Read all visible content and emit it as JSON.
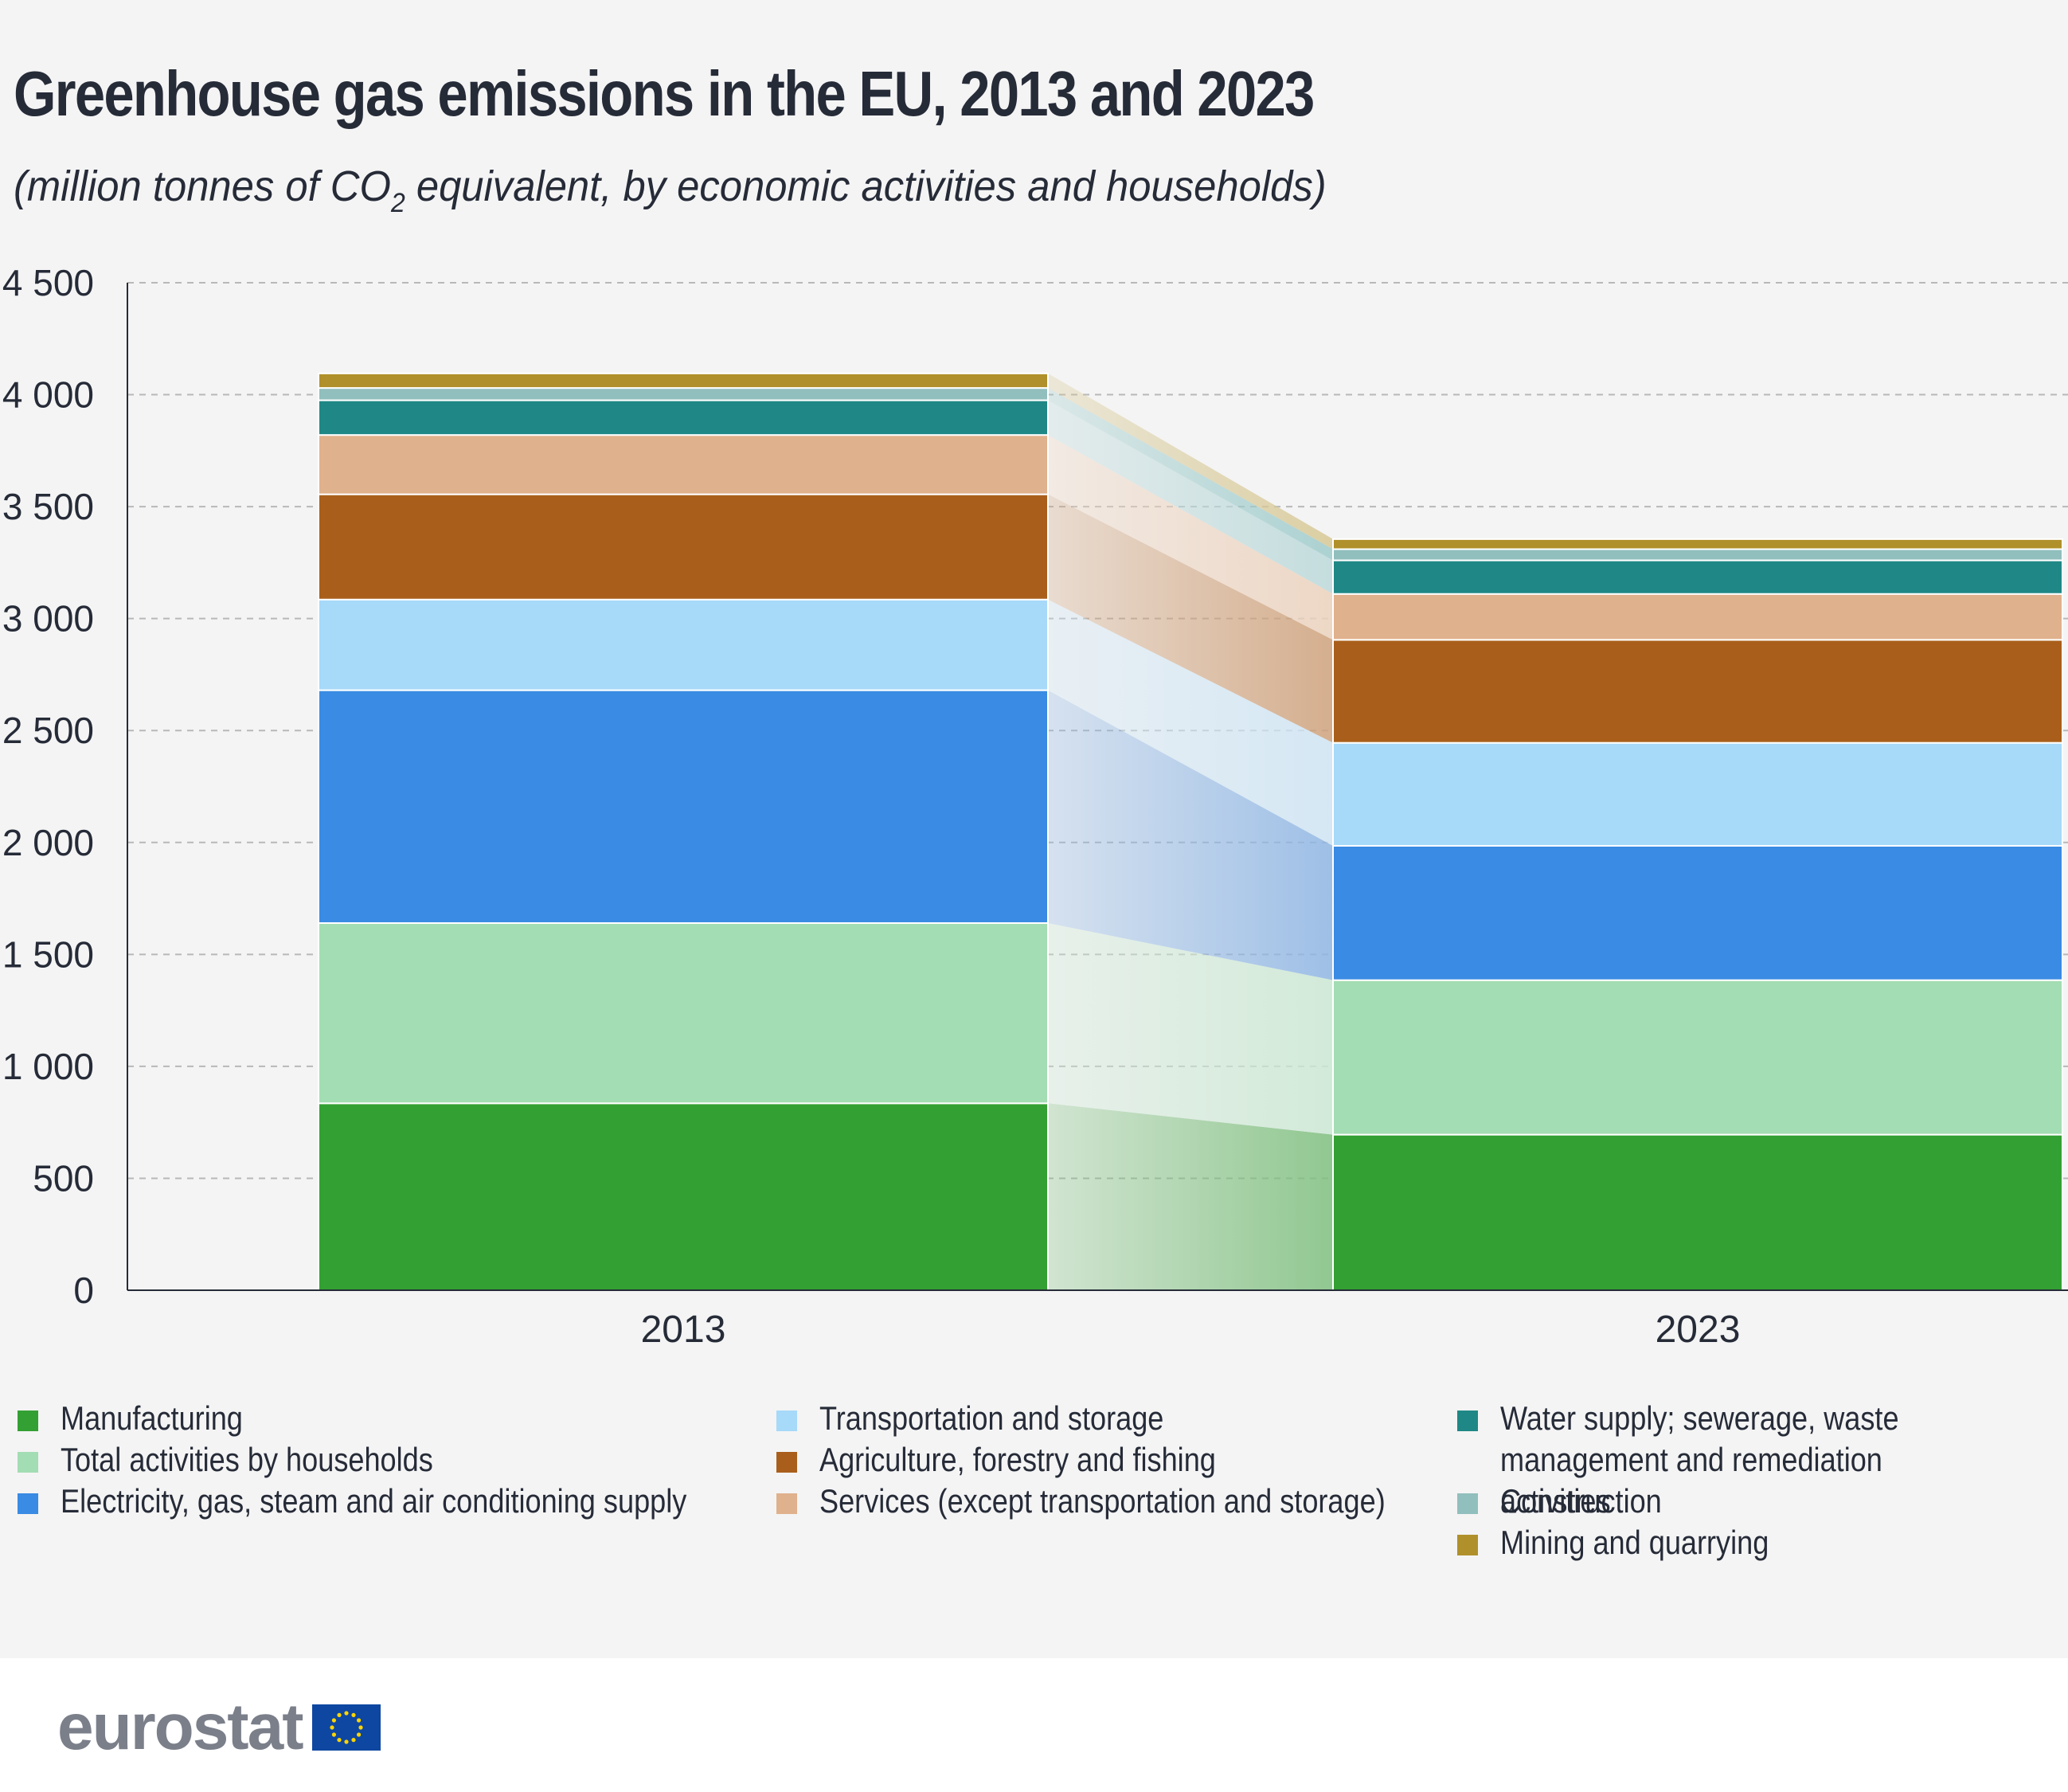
{
  "header": {
    "title": "Greenhouse gas emissions in the EU, 2013 and 2023",
    "subtitle_pre": "(million tonnes of CO",
    "subtitle_sub": "2",
    "subtitle_post": " equivalent, by economic activities and households)"
  },
  "footer": {
    "logo_text": "eurostat"
  },
  "chart_data": {
    "type": "bar",
    "stacked": true,
    "title": "Greenhouse gas emissions in the EU, 2013 and 2023",
    "subtitle": "(million tonnes of CO2 equivalent, by economic activities and households)",
    "categories": [
      "2013",
      "2023"
    ],
    "ylim": [
      0,
      4500
    ],
    "yticks": [
      0,
      500,
      1000,
      1500,
      2000,
      2500,
      3000,
      3500,
      4000,
      4500
    ],
    "ytick_labels": [
      "0",
      "500",
      "1 000",
      "1 500",
      "2 000",
      "2 500",
      "3 000",
      "3 500",
      "4 000",
      "4 500"
    ],
    "grid": true,
    "legend_position": "bottom",
    "series": [
      {
        "name": "Manufacturing",
        "color": "#33a033",
        "band_color": "#7fbf7f",
        "values": [
          835,
          695
        ]
      },
      {
        "name": "Total activities by households",
        "color": "#a3ddb3",
        "band_color": "#cce8d4",
        "values": [
          805,
          690
        ]
      },
      {
        "name": "Electricity, gas, steam and air conditioning supply",
        "color": "#3a8be3",
        "band_color": "#8fb6e4",
        "values": [
          1040,
          600
        ]
      },
      {
        "name": "Transportation and storage",
        "color": "#a7d9f9",
        "band_color": "#cfe5f4",
        "values": [
          405,
          460
        ]
      },
      {
        "name": "Agriculture, forestry and fishing",
        "color": "#a95f1b",
        "band_color": "#cfa27c",
        "values": [
          470,
          460
        ]
      },
      {
        "name": "Services (except transportation and storage)",
        "color": "#e0b18d",
        "band_color": "#ecd2bd",
        "values": [
          265,
          205
        ]
      },
      {
        "name": "Water supply; sewerage, waste management and remediation activities",
        "color": "#1f8886",
        "band_color": "#bcd9da",
        "values": [
          155,
          150
        ]
      },
      {
        "name": "Construction",
        "color": "#91bfbd",
        "band_color": "#9fcbcb",
        "values": [
          55,
          50
        ]
      },
      {
        "name": "Mining and quarrying",
        "color": "#b0902a",
        "band_color": "#d7c894",
        "values": [
          65,
          45
        ]
      }
    ]
  }
}
